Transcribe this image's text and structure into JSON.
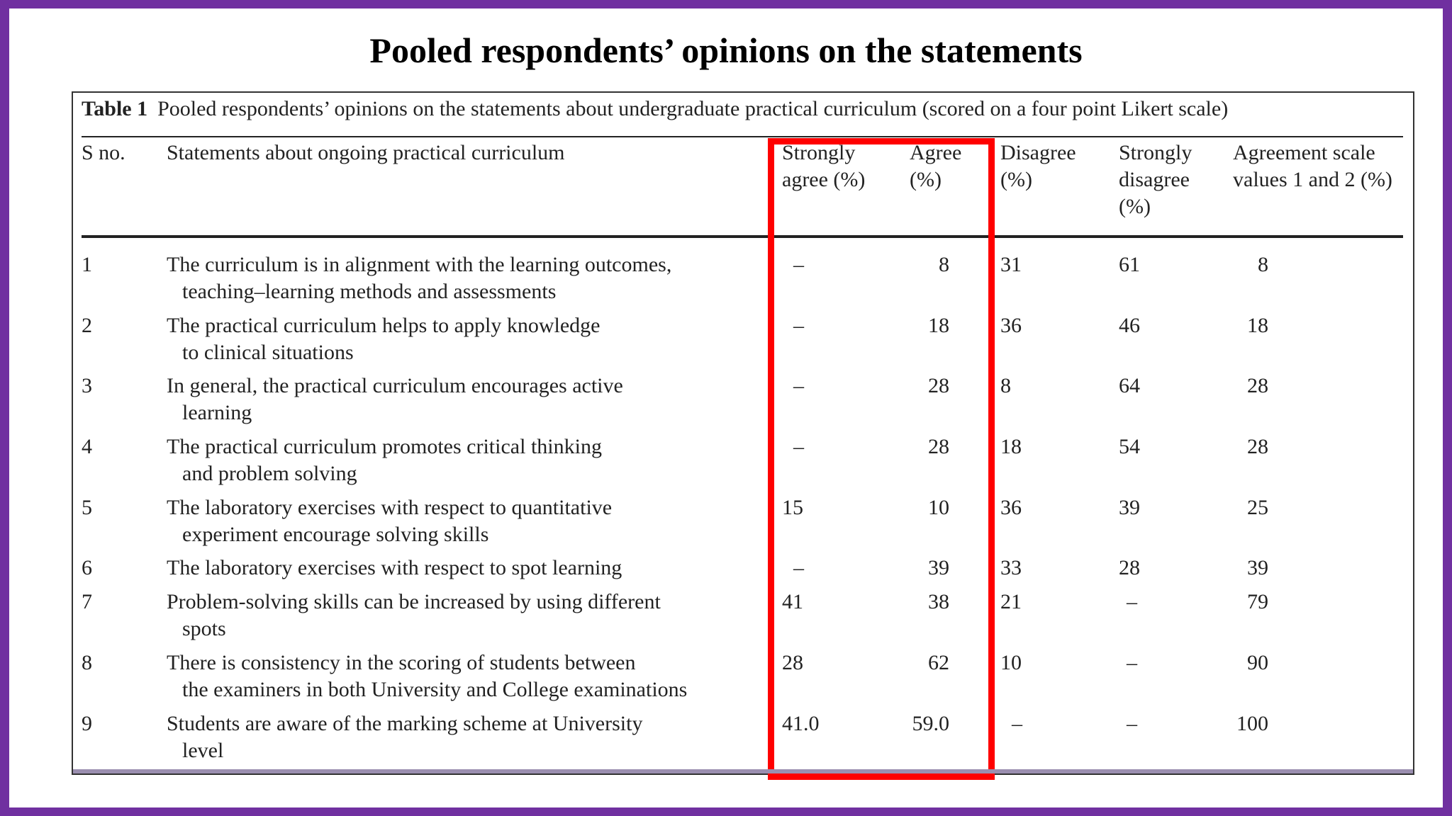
{
  "title": "Pooled respondents’ opinions on the statements",
  "table": {
    "caption_label": "Table 1",
    "caption_text": "Pooled respondents’ opinions on the statements about undergraduate practical curriculum (scored on a four point Likert scale)",
    "headers": {
      "sno": [
        "S no."
      ],
      "statement": [
        "Statements about ongoing practical curriculum"
      ],
      "strongly_agree": [
        "Strongly",
        "agree (%)"
      ],
      "agree": [
        "Agree",
        "(%)"
      ],
      "disagree": [
        "Disagree",
        "(%)"
      ],
      "strongly_disagree": [
        "Strongly",
        "disagree",
        "(%)"
      ],
      "agreement": [
        "Agreement scale",
        "values 1 and 2 (%)"
      ]
    },
    "rows": [
      {
        "sno": "1",
        "statement": [
          "The curriculum is in alignment with the learning outcomes,",
          "teaching–learning methods and assessments"
        ],
        "strongly_agree": "–",
        "agree": "8",
        "disagree": "31",
        "strongly_disagree": "61",
        "agreement": "8"
      },
      {
        "sno": "2",
        "statement": [
          "The practical curriculum helps to apply knowledge",
          "to clinical situations"
        ],
        "strongly_agree": "–",
        "agree": "18",
        "disagree": "36",
        "strongly_disagree": "46",
        "agreement": "18"
      },
      {
        "sno": "3",
        "statement": [
          "In general, the practical curriculum encourages active",
          "learning"
        ],
        "strongly_agree": "–",
        "agree": "28",
        "disagree": "8",
        "strongly_disagree": "64",
        "agreement": "28"
      },
      {
        "sno": "4",
        "statement": [
          "The practical curriculum promotes critical thinking",
          "and problem solving"
        ],
        "strongly_agree": "–",
        "agree": "28",
        "disagree": "18",
        "strongly_disagree": "54",
        "agreement": "28"
      },
      {
        "sno": "5",
        "statement": [
          "The laboratory exercises with respect to quantitative",
          "experiment encourage solving skills"
        ],
        "strongly_agree": "15",
        "agree": "10",
        "disagree": "36",
        "strongly_disagree": "39",
        "agreement": "25"
      },
      {
        "sno": "6",
        "statement": [
          "The laboratory exercises with respect to spot learning"
        ],
        "strongly_agree": "–",
        "agree": "39",
        "disagree": "33",
        "strongly_disagree": "28",
        "agreement": "39"
      },
      {
        "sno": "7",
        "statement": [
          "Problem-solving skills can be increased by using different",
          "spots"
        ],
        "strongly_agree": "41",
        "agree": "38",
        "disagree": "21",
        "strongly_disagree": "–",
        "agreement": "79"
      },
      {
        "sno": "8",
        "statement": [
          "There is consistency in the scoring of students between",
          "the examiners in both University and College examinations"
        ],
        "strongly_agree": "28",
        "agree": "62",
        "disagree": "10",
        "strongly_disagree": "–",
        "agreement": "90"
      },
      {
        "sno": "9",
        "statement": [
          "Students are aware of the marking scheme at University",
          "level"
        ],
        "strongly_agree": "41.0",
        "agree": "59.0",
        "disagree": "–",
        "strongly_disagree": "–",
        "agreement": "100"
      }
    ]
  },
  "highlight_color": "#ff0000",
  "background_color": "#7030a0"
}
